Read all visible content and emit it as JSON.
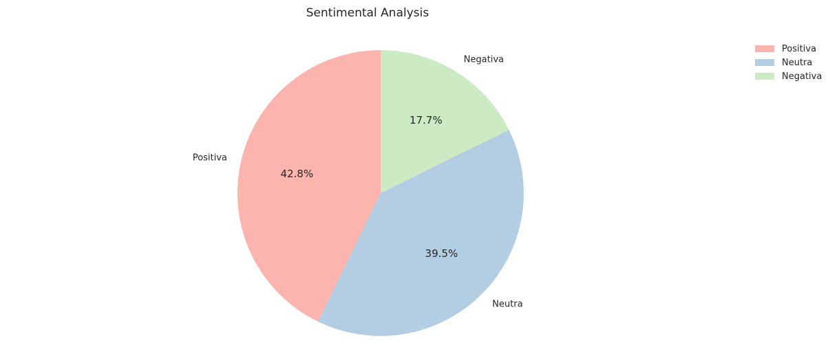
{
  "chart_data": {
    "type": "pie",
    "title": "Sentimental Analysis",
    "categories": [
      "Positiva",
      "Neutra",
      "Negativa"
    ],
    "values": [
      42.8,
      39.5,
      17.7
    ],
    "percent_labels": [
      "42.8%",
      "39.5%",
      "17.7%"
    ],
    "colors": [
      "#fbb4ae",
      "#b3cde3",
      "#ccebc5"
    ],
    "start_angle_deg": 90,
    "direction": "counterclockwise",
    "legend": {
      "placement": "top-right",
      "entries": [
        "Positiva",
        "Neutra",
        "Negativa"
      ]
    }
  }
}
